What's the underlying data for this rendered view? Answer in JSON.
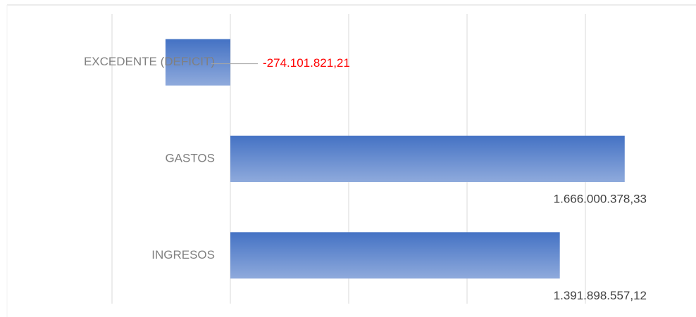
{
  "chart_data": {
    "type": "barh",
    "categories": [
      "EXCEDENTE (DEFICIT)",
      "GASTOS",
      "INGRESOS"
    ],
    "values": [
      -274101821.21,
      1666000378.33,
      1391898557.12
    ],
    "value_labels": [
      "-274.101.821,21",
      "1.666.000.378,33",
      "1.391.898.557,12"
    ],
    "color": "#4472c4",
    "color_light": "#8faadc",
    "negative_label_color": "#ff0000",
    "xlim": [
      -500000000,
      1800000000
    ],
    "xticks": [
      -500000000,
      0,
      500000000,
      1000000000,
      1500000000
    ],
    "grid": true
  }
}
